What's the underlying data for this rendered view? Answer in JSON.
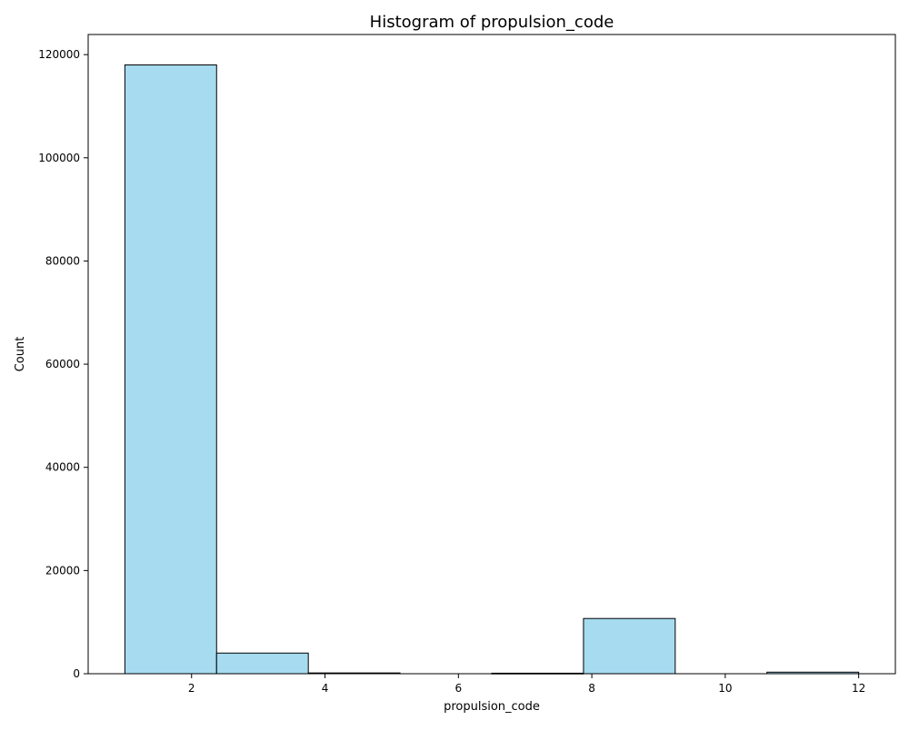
{
  "chart_data": {
    "type": "bar",
    "title": "Histogram of propulsion_code",
    "xlabel": "propulsion_code",
    "ylabel": "Count",
    "xlim": [
      0.45,
      12.55
    ],
    "ylim": [
      0,
      123900
    ],
    "xticks": [
      2,
      4,
      6,
      8,
      10,
      12
    ],
    "yticks": [
      0,
      20000,
      40000,
      60000,
      80000,
      100000,
      120000
    ],
    "bins": [
      {
        "x0": 1.0,
        "x1": 2.375,
        "count": 118000
      },
      {
        "x0": 2.375,
        "x1": 3.75,
        "count": 4000
      },
      {
        "x0": 3.75,
        "x1": 5.125,
        "count": 150
      },
      {
        "x0": 5.125,
        "x1": 6.5,
        "count": 0
      },
      {
        "x0": 6.5,
        "x1": 7.875,
        "count": 100
      },
      {
        "x0": 7.875,
        "x1": 9.25,
        "count": 10700
      },
      {
        "x0": 9.25,
        "x1": 10.625,
        "count": 0
      },
      {
        "x0": 10.625,
        "x1": 12.0,
        "count": 300
      }
    ],
    "bar_color": "#a6dbf0",
    "edge_color": "#000000",
    "grid": false
  }
}
